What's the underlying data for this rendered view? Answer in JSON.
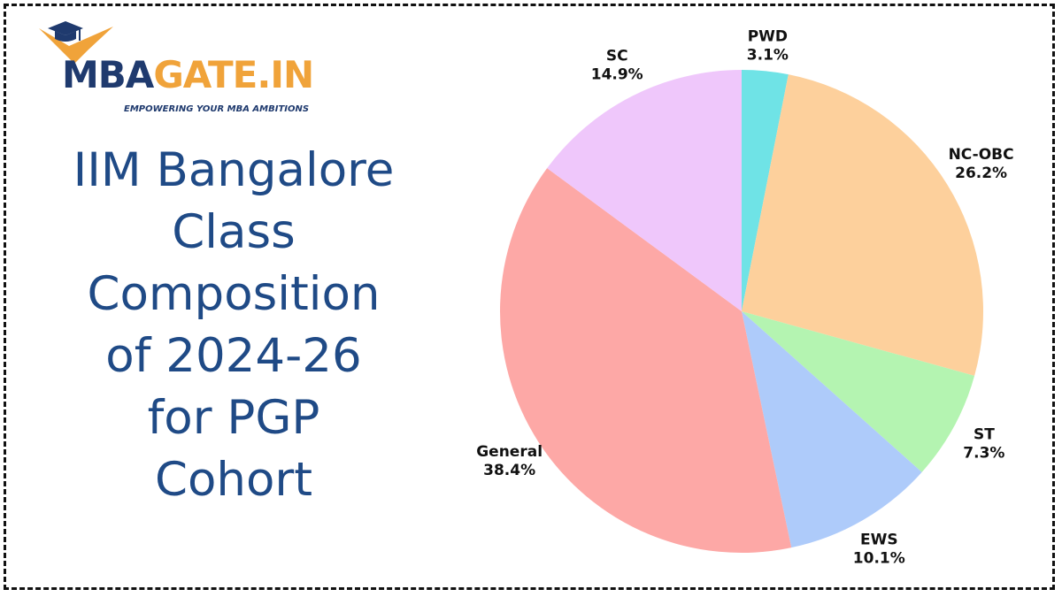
{
  "logo": {
    "mba": "MBA",
    "gate": "GATE.IN",
    "tagline": "EMPOWERING YOUR MBA AMBITIONS"
  },
  "title_lines": [
    "IIM Bangalore",
    "Class",
    "Composition",
    "of 2024-26",
    "for PGP",
    "Cohort"
  ],
  "colors": {
    "title": "#1f4a86",
    "logo_navy": "#1f3a6e",
    "logo_orange": "#f0a33a"
  },
  "chart_data": {
    "type": "pie",
    "title": "IIM Bangalore Class Composition of 2024-26 for PGP Cohort",
    "slices": [
      {
        "label": "PWD",
        "value": 3.1,
        "display": "3.1%",
        "color": "#6fe3e6"
      },
      {
        "label": "NC-OBC",
        "value": 26.2,
        "display": "26.2%",
        "color": "#fdd09c"
      },
      {
        "label": "ST",
        "value": 7.3,
        "display": "7.3%",
        "color": "#b4f4b1"
      },
      {
        "label": "EWS",
        "value": 10.1,
        "display": "10.1%",
        "color": "#aecbfa"
      },
      {
        "label": "General",
        "value": 38.4,
        "display": "38.4%",
        "color": "#fda8a6"
      },
      {
        "label": "SC",
        "value": 14.9,
        "display": "14.9%",
        "color": "#efc7fb"
      }
    ],
    "start": "top",
    "direction": "clockwise"
  }
}
